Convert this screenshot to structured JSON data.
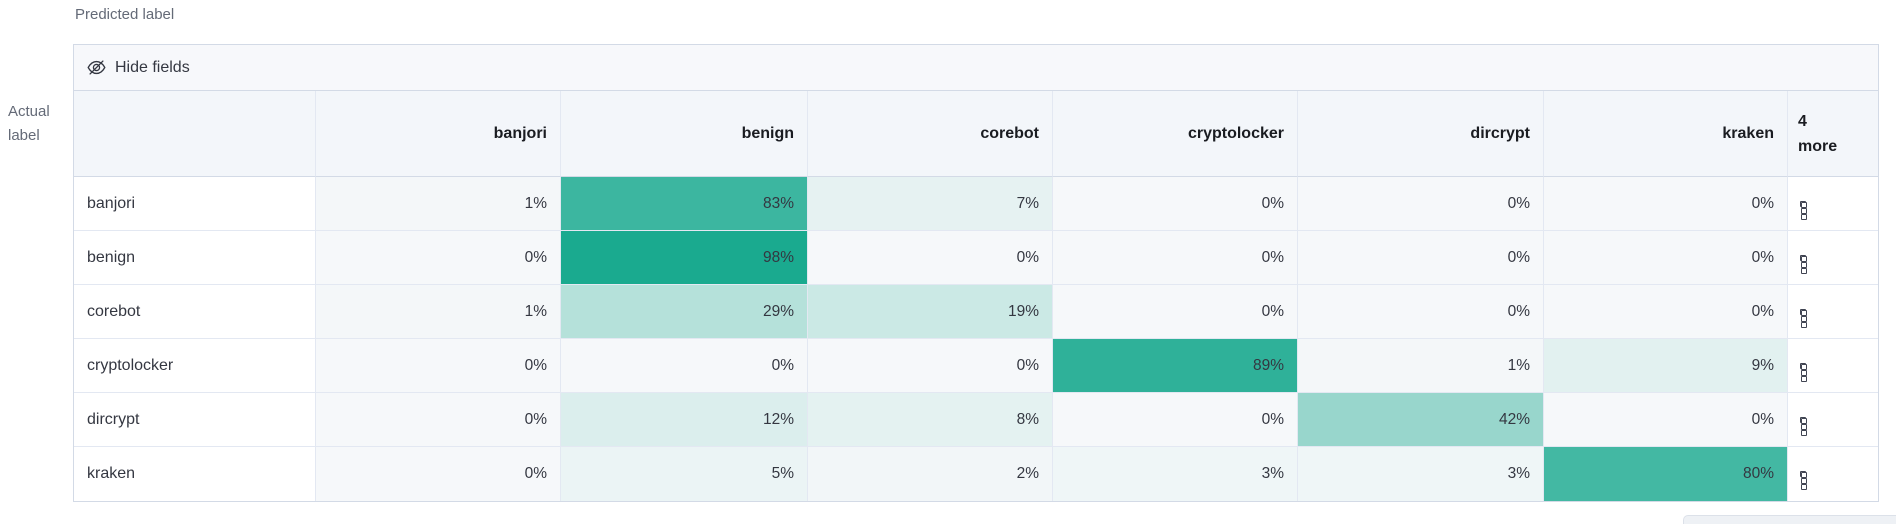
{
  "axes": {
    "predicted_label": "Predicted label",
    "actual_label_lines": [
      "Actual",
      "label"
    ]
  },
  "toolbar": {
    "hide_fields_label": "Hide fields",
    "icon": "eye-closed-icon"
  },
  "more_header": {
    "count": "4",
    "label": "more"
  },
  "row_actions_icon": "boxes-horizontal-icon",
  "chart_data": {
    "type": "heatmap",
    "x_axis_title": "Predicted label",
    "y_axis_title": "Actual label",
    "columns": [
      "banjori",
      "benign",
      "corebot",
      "cryptolocker",
      "dircrypt",
      "kraken"
    ],
    "hidden_columns": {
      "count": "4",
      "label": "more"
    },
    "rows": [
      "banjori",
      "benign",
      "corebot",
      "cryptolocker",
      "dircrypt",
      "kraken"
    ],
    "cell_value_suffix": "%",
    "values_percent": [
      [
        1,
        83,
        7,
        0,
        0,
        0
      ],
      [
        0,
        98,
        0,
        0,
        0,
        0
      ],
      [
        1,
        29,
        19,
        0,
        0,
        0
      ],
      [
        0,
        0,
        0,
        89,
        1,
        9
      ],
      [
        0,
        12,
        8,
        0,
        42,
        0
      ],
      [
        0,
        5,
        2,
        3,
        3,
        80
      ]
    ]
  },
  "colors": {
    "heat_full": "#16A88D",
    "heat_zero": "#F6F8FA",
    "header_bg": "#F3F6FA",
    "toolbar_bg": "#F7F8FB",
    "border_outer": "#D3DAE6",
    "border_inner": "#E3E8F2",
    "text_dark": "#343741",
    "text_subdued": "#646A77"
  }
}
